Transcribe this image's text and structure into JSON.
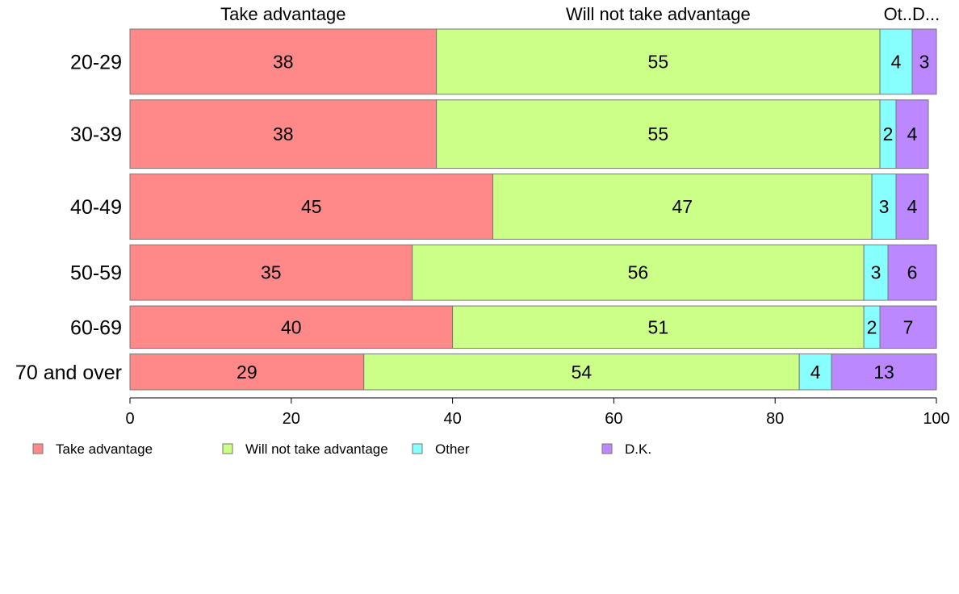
{
  "chart_data": {
    "type": "bar",
    "orientation": "horizontal",
    "stacked": true,
    "title": "",
    "xlabel": "",
    "ylabel": "",
    "xlim": [
      0,
      100
    ],
    "x_ticks": [
      0,
      20,
      40,
      60,
      80,
      100
    ],
    "grid": false,
    "legend_position": "bottom",
    "categories": [
      "20-29",
      "30-39",
      "40-49",
      "50-59",
      "60-69",
      "70 and over"
    ],
    "row_weights": [
      80,
      84,
      80,
      68,
      52,
      44
    ],
    "series": [
      {
        "name": "Take advantage",
        "header": "Take advantage",
        "color": "#FF8888",
        "values": [
          38,
          38,
          45,
          35,
          40,
          29
        ]
      },
      {
        "name": "Will not take advantage",
        "header": "Will not take advantage",
        "color": "#CCFF88",
        "values": [
          55,
          55,
          47,
          56,
          51,
          54
        ]
      },
      {
        "name": "Other",
        "header": "Ot..",
        "color": "#88FFFF",
        "values": [
          4,
          2,
          3,
          3,
          2,
          4
        ]
      },
      {
        "name": "D.K.",
        "header": "D...",
        "color": "#BB88FF",
        "values": [
          3,
          4,
          4,
          6,
          7,
          13
        ]
      }
    ]
  }
}
